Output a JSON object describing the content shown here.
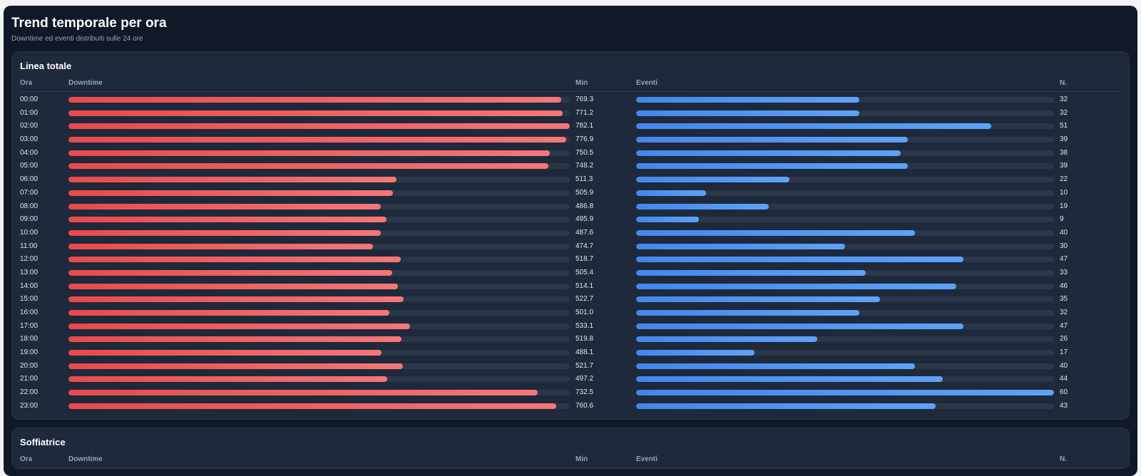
{
  "header": {
    "title": "Trend temporale per ora",
    "subtitle": "Downtime ed eventi distribuiti sulle 24 ore"
  },
  "columns": {
    "hour": "Ora",
    "downtime": "Downtime",
    "minutes": "Min",
    "events": "Eventi",
    "count": "N."
  },
  "colors": {
    "downtime_bar": "#ef4444",
    "events_bar": "#3b82f6",
    "background": "#111827",
    "card": "#1e293b"
  },
  "scales": {
    "downtime_max": 782.1,
    "events_max": 60
  },
  "sections": [
    {
      "title": "Linea totale",
      "rows": [
        {
          "hour": "00:00",
          "downtime": 769.3,
          "downtime_label": "769.3",
          "events": 32,
          "events_label": "32"
        },
        {
          "hour": "01:00",
          "downtime": 771.2,
          "downtime_label": "771.2",
          "events": 32,
          "events_label": "32"
        },
        {
          "hour": "02:00",
          "downtime": 782.1,
          "downtime_label": "782.1",
          "events": 51,
          "events_label": "51"
        },
        {
          "hour": "03:00",
          "downtime": 776.9,
          "downtime_label": "776.9",
          "events": 39,
          "events_label": "39"
        },
        {
          "hour": "04:00",
          "downtime": 750.5,
          "downtime_label": "750.5",
          "events": 38,
          "events_label": "38"
        },
        {
          "hour": "05:00",
          "downtime": 748.2,
          "downtime_label": "748.2",
          "events": 39,
          "events_label": "39"
        },
        {
          "hour": "06:00",
          "downtime": 511.3,
          "downtime_label": "511.3",
          "events": 22,
          "events_label": "22"
        },
        {
          "hour": "07:00",
          "downtime": 505.9,
          "downtime_label": "505.9",
          "events": 10,
          "events_label": "10"
        },
        {
          "hour": "08:00",
          "downtime": 486.8,
          "downtime_label": "486.8",
          "events": 19,
          "events_label": "19"
        },
        {
          "hour": "09:00",
          "downtime": 495.9,
          "downtime_label": "495.9",
          "events": 9,
          "events_label": "9"
        },
        {
          "hour": "10:00",
          "downtime": 487.6,
          "downtime_label": "487.6",
          "events": 40,
          "events_label": "40"
        },
        {
          "hour": "11:00",
          "downtime": 474.7,
          "downtime_label": "474.7",
          "events": 30,
          "events_label": "30"
        },
        {
          "hour": "12:00",
          "downtime": 518.7,
          "downtime_label": "518.7",
          "events": 47,
          "events_label": "47"
        },
        {
          "hour": "13:00",
          "downtime": 505.4,
          "downtime_label": "505.4",
          "events": 33,
          "events_label": "33"
        },
        {
          "hour": "14:00",
          "downtime": 514.1,
          "downtime_label": "514.1",
          "events": 46,
          "events_label": "46"
        },
        {
          "hour": "15:00",
          "downtime": 522.7,
          "downtime_label": "522.7",
          "events": 35,
          "events_label": "35"
        },
        {
          "hour": "16:00",
          "downtime": 501.0,
          "downtime_label": "501.0",
          "events": 32,
          "events_label": "32"
        },
        {
          "hour": "17:00",
          "downtime": 533.1,
          "downtime_label": "533.1",
          "events": 47,
          "events_label": "47"
        },
        {
          "hour": "18:00",
          "downtime": 519.8,
          "downtime_label": "519.8",
          "events": 26,
          "events_label": "26"
        },
        {
          "hour": "19:00",
          "downtime": 488.1,
          "downtime_label": "488.1",
          "events": 17,
          "events_label": "17"
        },
        {
          "hour": "20:00",
          "downtime": 521.7,
          "downtime_label": "521.7",
          "events": 40,
          "events_label": "40"
        },
        {
          "hour": "21:00",
          "downtime": 497.2,
          "downtime_label": "497.2",
          "events": 44,
          "events_label": "44"
        },
        {
          "hour": "22:00",
          "downtime": 732.5,
          "downtime_label": "732.5",
          "events": 60,
          "events_label": "60"
        },
        {
          "hour": "23:00",
          "downtime": 760.6,
          "downtime_label": "760.6",
          "events": 43,
          "events_label": "43"
        }
      ]
    },
    {
      "title": "Soffiatrice",
      "rows": []
    }
  ]
}
